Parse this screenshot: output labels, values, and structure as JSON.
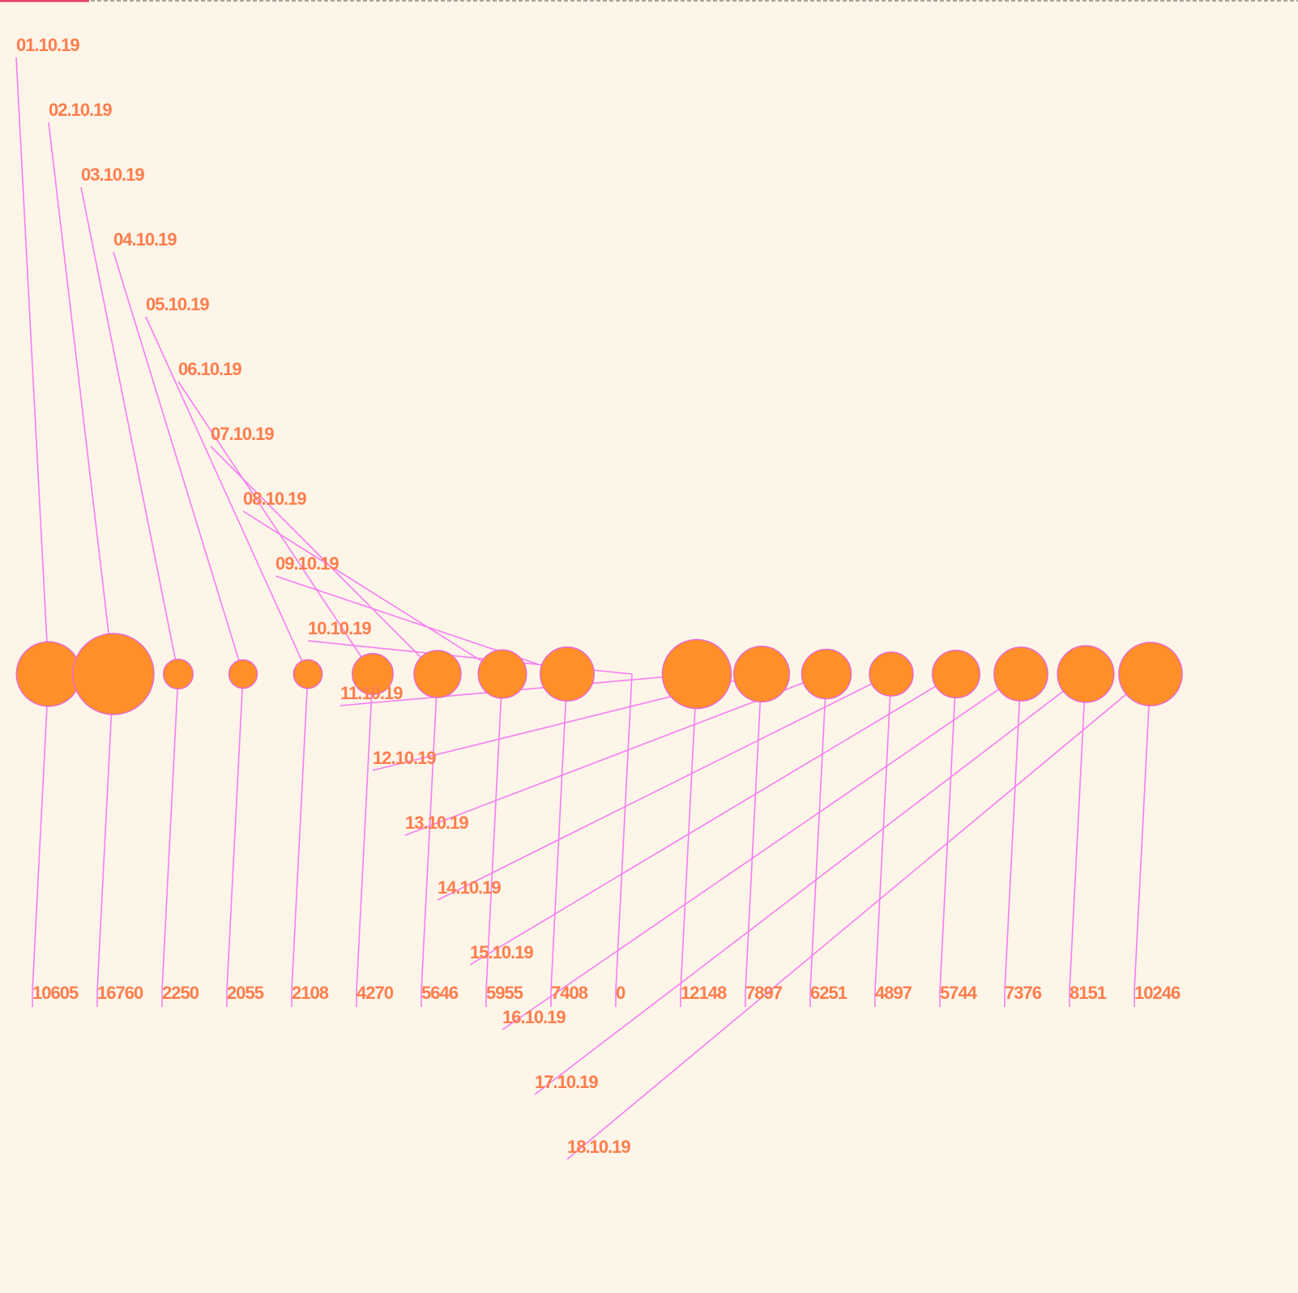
{
  "colors": {
    "background": "#fdf5e8",
    "bubble_fill": "#ff8f28",
    "bubble_stroke": "#e766d8",
    "line": "#f67ef0",
    "label": "#ff7d4d",
    "top_accent": "#e8436b",
    "top_border": "#555555"
  },
  "chart_data": {
    "type": "bubble",
    "title": "",
    "xlabel": "",
    "ylabel": "",
    "legend": "none",
    "grid": false,
    "categories": [
      "01.10.19",
      "02.10.19",
      "03.10.19",
      "04.10.19",
      "05.10.19",
      "06.10.19",
      "07.10.19",
      "08.10.19",
      "09.10.19",
      "10.10.19",
      "11.10.19",
      "12.10.19",
      "13.10.19",
      "14.10.19",
      "15.10.19",
      "16.10.19",
      "17.10.19",
      "18.10.19"
    ],
    "values": [
      10605,
      16760,
      2250,
      2055,
      2108,
      4270,
      5646,
      5955,
      7408,
      0,
      12148,
      7897,
      6251,
      4897,
      5744,
      7376,
      8151,
      10246
    ],
    "value_labels": [
      "10605",
      "16760",
      "2250",
      "2055",
      "2108",
      "4270",
      "5646",
      "5955",
      "7408",
      "0",
      "12148",
      "7897",
      "6251",
      "4897",
      "5744",
      "7376",
      "8151",
      "10246"
    ]
  }
}
